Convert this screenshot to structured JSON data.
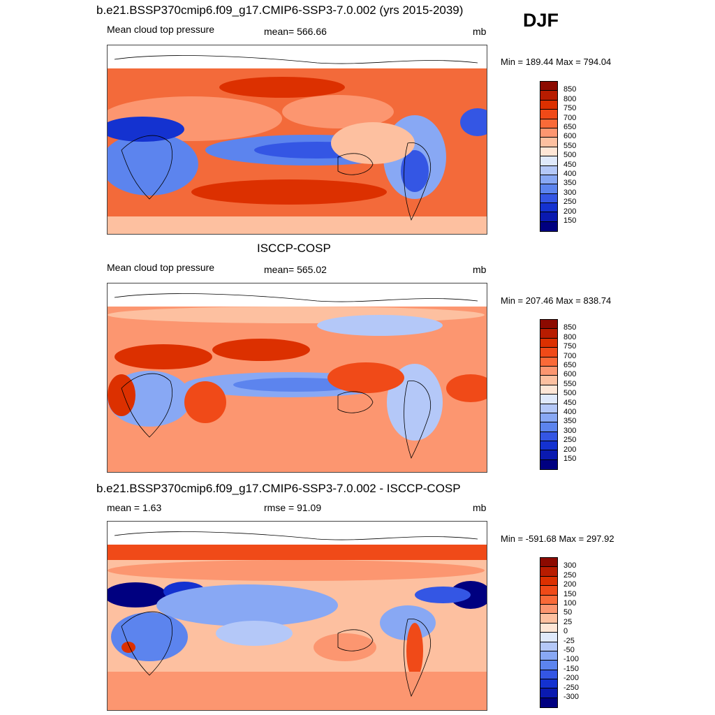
{
  "season": "DJF",
  "units": "mb",
  "panels": [
    {
      "title": "b.e21.BSSP370cmip6.f09_g17.CMIP6-SSP3-7.0.002 (yrs 2015-2039)",
      "left_label": "Mean cloud top pressure",
      "center_label": "mean= 566.66",
      "right_label": "mb",
      "minmax": "Min = 189.44 Max = 794.04"
    },
    {
      "title": "ISCCP-COSP",
      "left_label": "Mean cloud top pressure",
      "center_label": "mean= 565.02",
      "right_label": "mb",
      "minmax": "Min = 207.46 Max = 838.74"
    },
    {
      "title": "b.e21.BSSP370cmip6.f09_g17.CMIP6-SSP3-7.0.002 - ISCCP-COSP",
      "left_label": "mean =   1.63",
      "center_label": "rmse =  91.09",
      "right_label": "mb",
      "minmax": "Min = -591.68 Max = 297.92"
    }
  ],
  "colorbars": {
    "abs": {
      "labels": [
        "850",
        "800",
        "750",
        "700",
        "650",
        "600",
        "550",
        "500",
        "450",
        "400",
        "350",
        "300",
        "250",
        "200",
        "150"
      ],
      "colors": [
        "#8c0a00",
        "#b81c00",
        "#dc3000",
        "#f04a18",
        "#fa6a38",
        "#fc9670",
        "#fdc0a0",
        "#fee6d6",
        "#dfe9fb",
        "#b4c8f8",
        "#88a8f4",
        "#5c84ee",
        "#3456e4",
        "#1432d0",
        "#0a1ab0",
        "#000080"
      ]
    },
    "diff": {
      "labels": [
        "300",
        "250",
        "200",
        "150",
        "100",
        "50",
        "25",
        "0",
        "-25",
        "-50",
        "-100",
        "-150",
        "-200",
        "-250",
        "-300"
      ],
      "colors": [
        "#8c0a00",
        "#b81c00",
        "#dc3000",
        "#f04a18",
        "#fa6a38",
        "#fc9670",
        "#fdc0a0",
        "#fee6d6",
        "#dfe9fb",
        "#b4c8f8",
        "#88a8f4",
        "#5c84ee",
        "#3456e4",
        "#1432d0",
        "#0a1ab0",
        "#000080"
      ]
    }
  }
}
